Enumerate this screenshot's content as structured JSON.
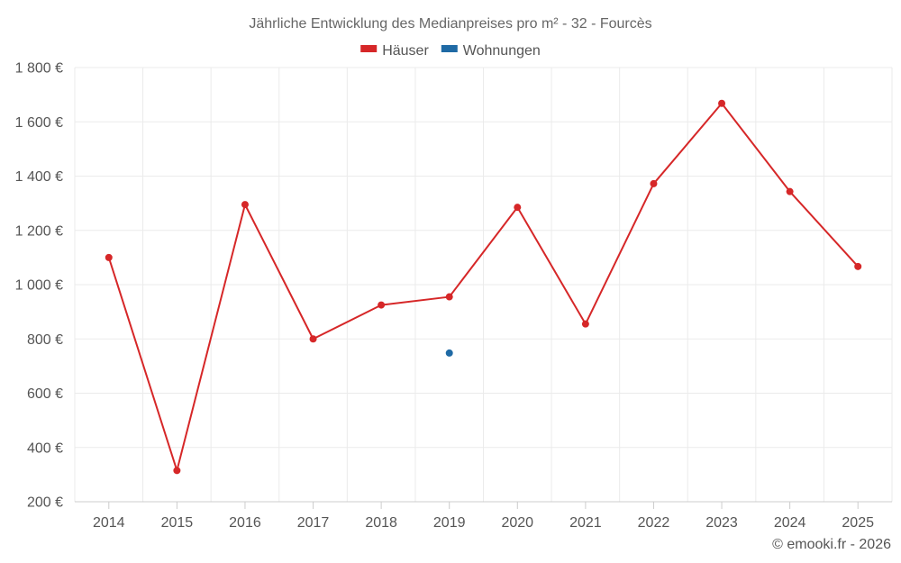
{
  "chart_data": {
    "type": "line",
    "title": "Jährliche Entwicklung des Medianpreises pro m² - 32 - Fourcès",
    "categories": [
      "2014",
      "2015",
      "2016",
      "2017",
      "2018",
      "2019",
      "2020",
      "2021",
      "2022",
      "2023",
      "2024",
      "2025"
    ],
    "series": [
      {
        "name": "Häuser",
        "color": "#d62728",
        "values": [
          1100,
          315,
          1295,
          800,
          925,
          955,
          1285,
          855,
          1372,
          1668,
          1343,
          1067
        ]
      },
      {
        "name": "Wohnungen",
        "color": "#1f6aa5",
        "values": [
          null,
          null,
          null,
          null,
          null,
          748,
          null,
          null,
          null,
          null,
          null,
          null
        ]
      }
    ],
    "yticks": [
      "200 €",
      "400 €",
      "600 €",
      "800 €",
      "1 000 €",
      "1 200 €",
      "1 400 €",
      "1 600 €",
      "1 800 €"
    ],
    "ylim": [
      200,
      1800
    ],
    "grid": true,
    "legend_position": "top-center"
  },
  "credit": "© emooki.fr - 2026"
}
